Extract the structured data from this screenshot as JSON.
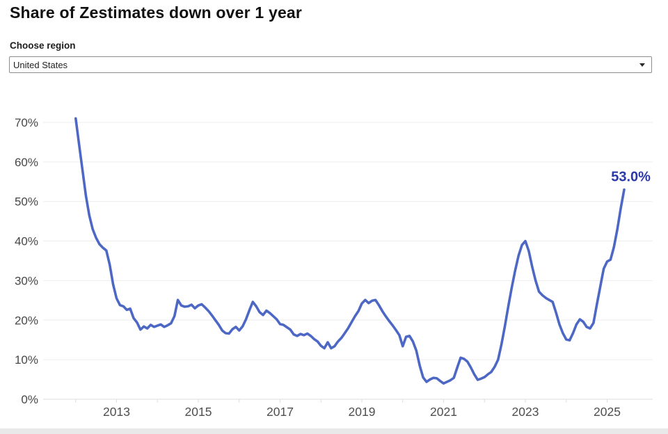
{
  "header": {
    "title": "Share of Zestimates down over 1 year"
  },
  "region_selector": {
    "label": "Choose region",
    "value": "United States",
    "chevron_icon": "chevron-down"
  },
  "chart_data": {
    "type": "line",
    "title": "Share of Zestimates down over 1 year",
    "series": [
      {
        "name": "United States",
        "x_start_year": 2012,
        "x_interval": "monthly",
        "x_end": "2025-06",
        "values": [
          71,
          64.5,
          58,
          51.5,
          46.5,
          43,
          40.8,
          39.2,
          38.3,
          37.6,
          34,
          29,
          25.5,
          23.8,
          23.5,
          22.6,
          22.9,
          20.5,
          19.4,
          17.6,
          18.4,
          17.9,
          18.8,
          18.3,
          18.6,
          18.9,
          18.3,
          18.7,
          19.2,
          21,
          25.1,
          23.7,
          23.4,
          23.5,
          23.9,
          23,
          23.7,
          24,
          23.2,
          22.3,
          21.2,
          20,
          18.8,
          17.4,
          16.7,
          16.6,
          17.7,
          18.3,
          17.4,
          18.4,
          20.2,
          22.5,
          24.6,
          23.5,
          22,
          21.3,
          22.4,
          21.8,
          21,
          20.2,
          19,
          18.8,
          18.2,
          17.6,
          16.4,
          16,
          16.5,
          16.2,
          16.6,
          16,
          15.2,
          14.6,
          13.5,
          12.9,
          14.4,
          12.9,
          13.4,
          14.6,
          15.5,
          16.7,
          18,
          19.5,
          21,
          22.3,
          24.2,
          25.1,
          24.3,
          24.9,
          25.1,
          23.8,
          22.3,
          21,
          19.8,
          18.7,
          17.5,
          16.2,
          13.4,
          15.8,
          16,
          14.6,
          12.3,
          8.5,
          5.5,
          4.4,
          5,
          5.4,
          5.3,
          4.6,
          4,
          4.4,
          4.8,
          5.4,
          8,
          10.5,
          10.2,
          9.5,
          8,
          6.3,
          4.9,
          5.2,
          5.6,
          6.3,
          6.9,
          8.2,
          10,
          13.9,
          18.5,
          23.5,
          28.2,
          32.5,
          36.3,
          39,
          40,
          37.5,
          33.5,
          30,
          27.2,
          26.3,
          25.6,
          25.1,
          24.6,
          21.9,
          18.9,
          16.7,
          15.1,
          14.9,
          16.7,
          18.9,
          20.2,
          19.6,
          18.3,
          17.9,
          19.3,
          24,
          28.5,
          33,
          34.8,
          35.3,
          38.5,
          43,
          48.3,
          53
        ]
      }
    ],
    "end_label": "53.0%",
    "end_value": 53.0,
    "ytick_values": [
      0,
      10,
      20,
      30,
      40,
      50,
      60,
      70
    ],
    "ytick_labels": [
      "0%",
      "10%",
      "20%",
      "30%",
      "40%",
      "50%",
      "60%",
      "70%"
    ],
    "xtick_years": [
      2013,
      2015,
      2017,
      2019,
      2021,
      2023,
      2025
    ],
    "ylim": [
      0,
      74
    ],
    "grid": "horizontal",
    "legend": "none",
    "colors": {
      "line": "#4d68c4",
      "end_label": "#2a38a8",
      "gridline": "#ededed",
      "baseline": "#dcdcdc",
      "axis_tick": "#dedede",
      "ytick_text": "#474747",
      "xtick_text": "#4f4f4f"
    }
  }
}
